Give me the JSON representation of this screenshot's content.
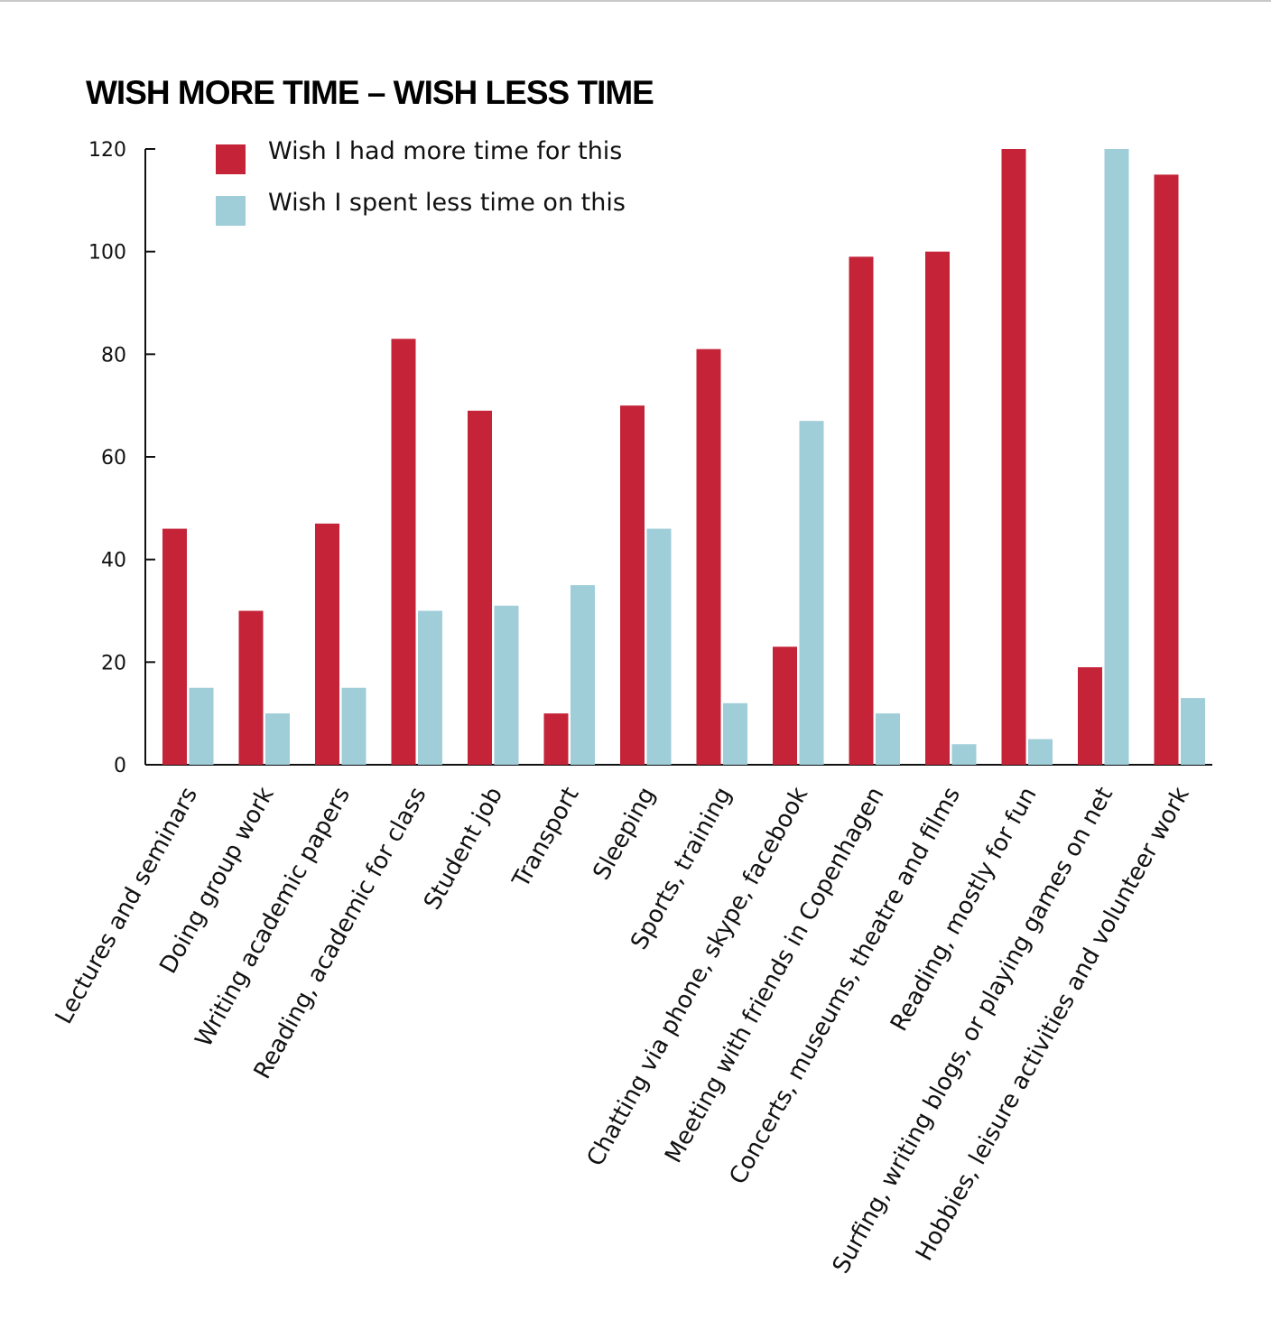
{
  "chart_data": {
    "type": "bar",
    "title": "WISH MORE TIME – WISH LESS TIME",
    "xlabel": "",
    "ylabel": "",
    "ylim": [
      0,
      120
    ],
    "yticks": [
      0,
      20,
      40,
      60,
      80,
      100,
      120
    ],
    "grid": false,
    "legend_placement": "top-left",
    "categories": [
      "Lectures and seminars",
      "Doing group work",
      "Writing academic papers",
      "Reading, academic for class",
      "Student job",
      "Transport",
      "Sleeping",
      "Sports, training",
      "Chatting via phone, skype, facebook",
      "Meeting with friends in Copenhagen",
      "Concerts, museums, theatre and films",
      "Reading, mostly for fun",
      "Surfing, writing blogs, or playing games on net",
      "Hobbies, leisure activities and volunteer work"
    ],
    "series": [
      {
        "name": "Wish I had more time for this",
        "color": "#c42338",
        "values": [
          46,
          30,
          47,
          83,
          69,
          10,
          70,
          81,
          23,
          99,
          100,
          120,
          19,
          115
        ]
      },
      {
        "name": "Wish I spent less time on this",
        "color": "#9fcdd8",
        "values": [
          15,
          10,
          15,
          30,
          31,
          35,
          46,
          12,
          67,
          10,
          4,
          5,
          120,
          13
        ]
      }
    ]
  }
}
